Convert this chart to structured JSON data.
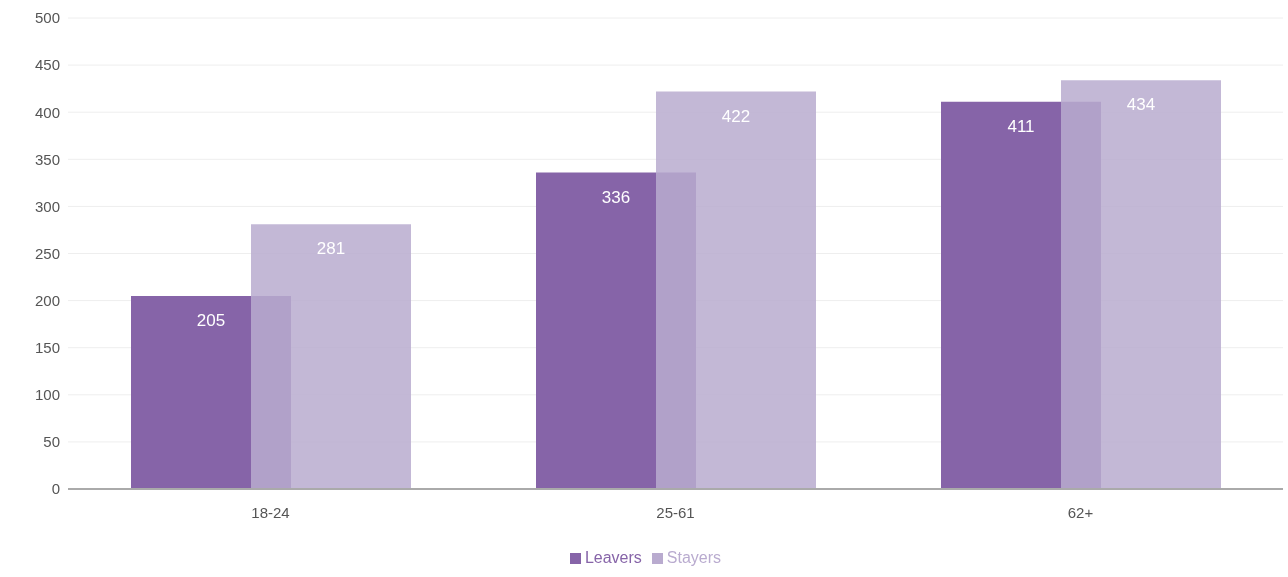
{
  "chart_data": {
    "type": "bar",
    "categories": [
      "18-24",
      "25-61",
      "62+"
    ],
    "series": [
      {
        "name": "Leavers",
        "color": "#8664a8",
        "values": [
          205,
          336,
          411
        ]
      },
      {
        "name": "Stayers",
        "color": "#b9abcf",
        "values": [
          281,
          422,
          434
        ]
      }
    ],
    "ylim": [
      0,
      500
    ],
    "yticks": [
      0,
      50,
      100,
      150,
      200,
      250,
      300,
      350,
      400,
      450,
      500
    ],
    "grid": "y",
    "legend": "bottom",
    "data_labels": true
  }
}
